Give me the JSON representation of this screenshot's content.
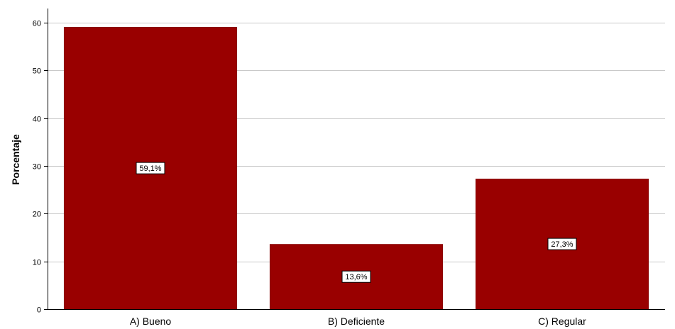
{
  "chart_data": {
    "type": "bar",
    "title": "",
    "xlabel": "",
    "ylabel": "Porcentaje",
    "categories": [
      "A) Bueno",
      "B) Deficiente",
      "C) Regular"
    ],
    "values": [
      59.1,
      13.6,
      27.3
    ],
    "data_labels": [
      "59,1%",
      "13,6%",
      "27,3%"
    ],
    "ylim": [
      0,
      63
    ],
    "yticks": [
      0,
      10,
      20,
      30,
      40,
      50,
      60
    ],
    "ytick_labels": [
      "0",
      "10",
      "20",
      "30",
      "40",
      "50",
      "60"
    ],
    "grid": true,
    "legend": "none",
    "colors": {
      "bar": "#990000",
      "grid": "#c8c8c8",
      "axis": "#000000",
      "label_box_border": "#000000",
      "label_box_fill": "#ffffff"
    }
  }
}
